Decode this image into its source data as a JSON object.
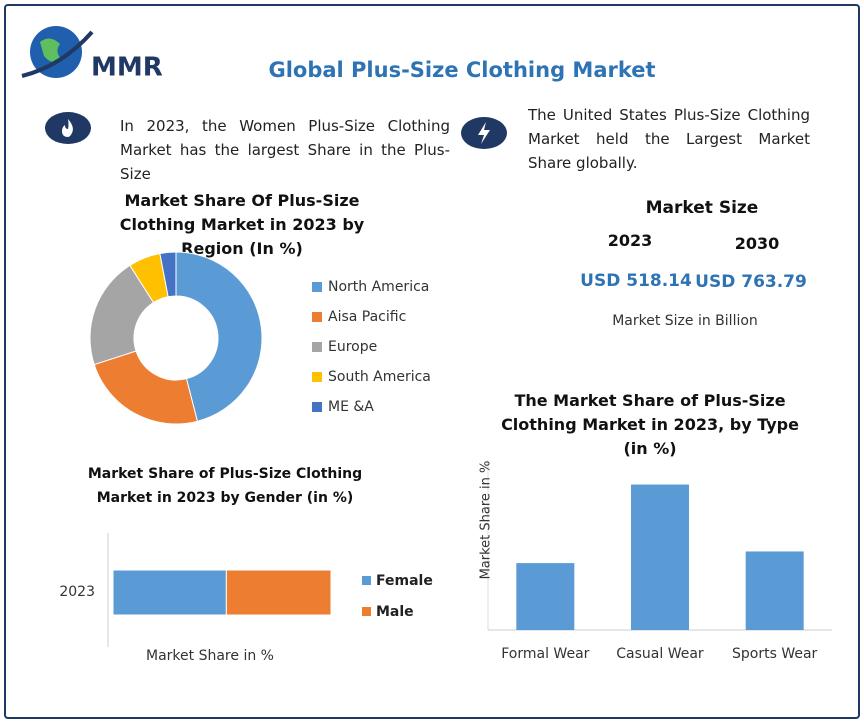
{
  "header": {
    "logo": "MMR",
    "title": "Global Plus-Size Clothing Market"
  },
  "notes": [
    "In 2023, the Women Plus-Size Clothing Market has the largest Share in the Plus-Size",
    "The United States Plus-Size Clothing Market held the Largest Market Share globally."
  ],
  "market_size": {
    "title": "Market Size",
    "years": [
      "2023",
      "2030"
    ],
    "values": [
      "USD 518.14",
      "USD 763.79"
    ],
    "unit": "Market Size in Billion"
  },
  "chart_data": [
    {
      "type": "pie",
      "title": "Market Share Of Plus-Size Clothing Market in 2023 by Region (In %)",
      "donut": true,
      "legend": "right",
      "categories": [
        "North America",
        "Aisa Pacific",
        "Europe",
        "South America",
        "ME &A"
      ],
      "values": [
        46,
        24,
        21,
        6,
        3
      ],
      "colors": [
        "#5b9bd5",
        "#ed7d31",
        "#a5a5a5",
        "#ffc000",
        "#4472c4"
      ]
    },
    {
      "type": "hbar-stacked",
      "title": "Market Share of Plus-Size Clothing Market in 2023 by Gender (in %)",
      "legend": "right",
      "categories": [
        "2023"
      ],
      "xlabel": "Market Share in %",
      "xlim": [
        0,
        100
      ],
      "series": [
        {
          "name": "Female",
          "color": "#5b9bd5",
          "values": [
            52
          ]
        },
        {
          "name": "Male",
          "color": "#ed7d31",
          "values": [
            48
          ]
        }
      ]
    },
    {
      "type": "bar",
      "title": "The Market Share of Plus-Size Clothing Market in 2023, by Type (in %)",
      "categories": [
        "Formal Wear",
        "Casual Wear",
        "Sports Wear"
      ],
      "values": [
        23,
        50,
        27
      ],
      "ylabel": "Market Share in %",
      "ylim": [
        0,
        55
      ],
      "color": "#5b9bd5"
    }
  ]
}
